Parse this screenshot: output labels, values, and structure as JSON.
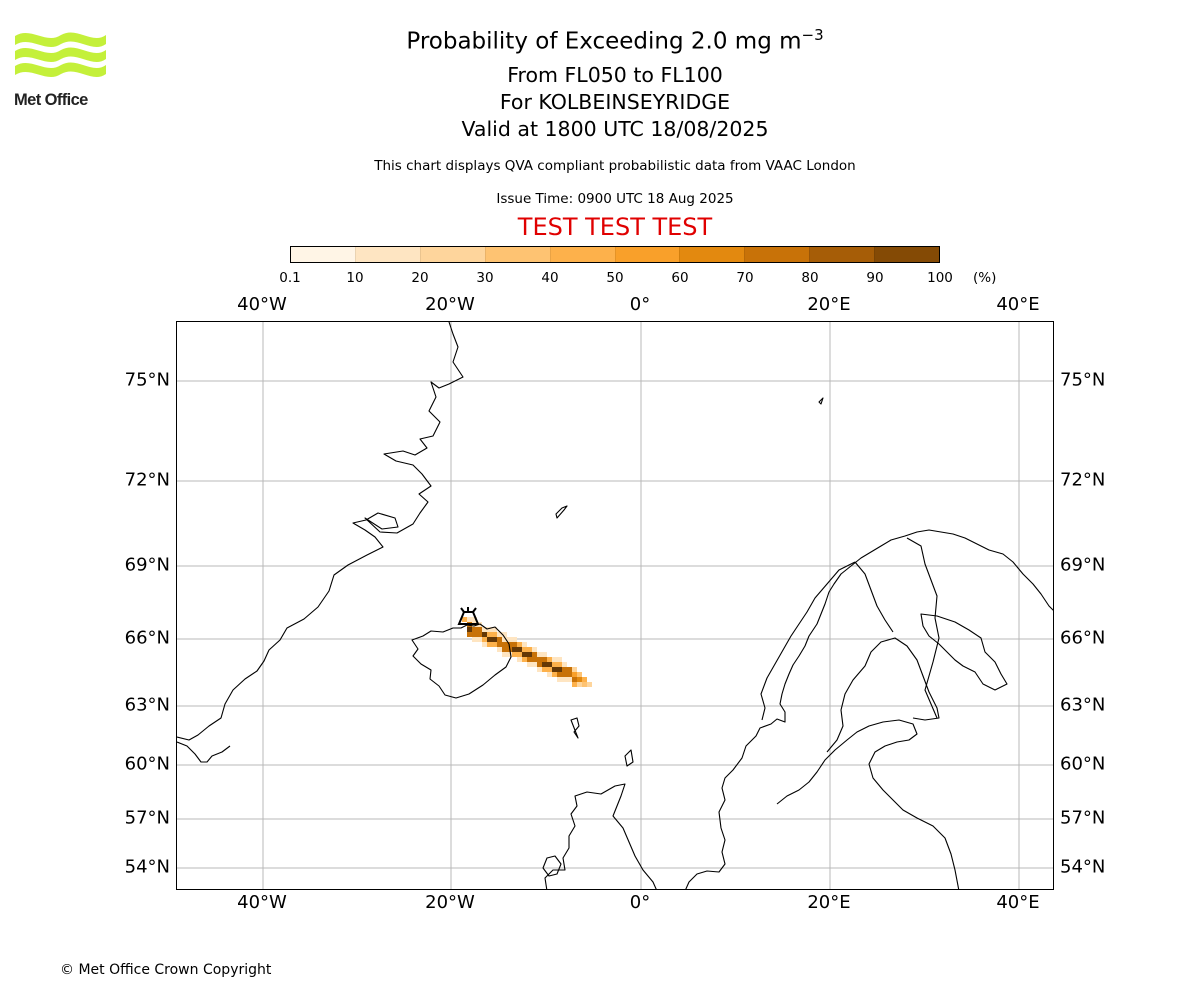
{
  "brand": {
    "logo_text": "Met Office",
    "logo_color": "#c4f03a"
  },
  "header": {
    "title_main": "Probability of Exceeding 2.0 mg m",
    "title_exp": "−3",
    "levels": "From FL050 to FL100",
    "location": "For KOLBEINSEYRIDGE",
    "valid": "Valid at 1800 UTC 18/08/2025",
    "note": "This chart displays QVA compliant probabilistic data from VAAC London",
    "issue": "Issue Time: 0900 UTC 18 Aug 2025",
    "test_banner": "TEST TEST TEST",
    "test_color": "#e00000"
  },
  "colorbar": {
    "ticks": [
      "0.1",
      "10",
      "20",
      "30",
      "40",
      "50",
      "60",
      "70",
      "80",
      "90",
      "100"
    ],
    "unit": "(%)",
    "colors": [
      "#fff5e6",
      "#fee5c2",
      "#fed59c",
      "#fec372",
      "#fdb14b",
      "#f9a02a",
      "#e3890f",
      "#c87208",
      "#a65d07",
      "#844a05",
      "#643806"
    ]
  },
  "map": {
    "lon_labels": [
      "40°W",
      "20°W",
      "0°",
      "20°E",
      "40°E"
    ],
    "lat_labels": [
      "75°N",
      "72°N",
      "69°N",
      "66°N",
      "63°N",
      "60°N",
      "57°N",
      "54°N"
    ],
    "gridlines": true,
    "volcano_icon": "volcano-marker-icon",
    "plume_max_probability_pct": 100
  },
  "footer": {
    "copyright": "© Met Office Crown Copyright"
  }
}
